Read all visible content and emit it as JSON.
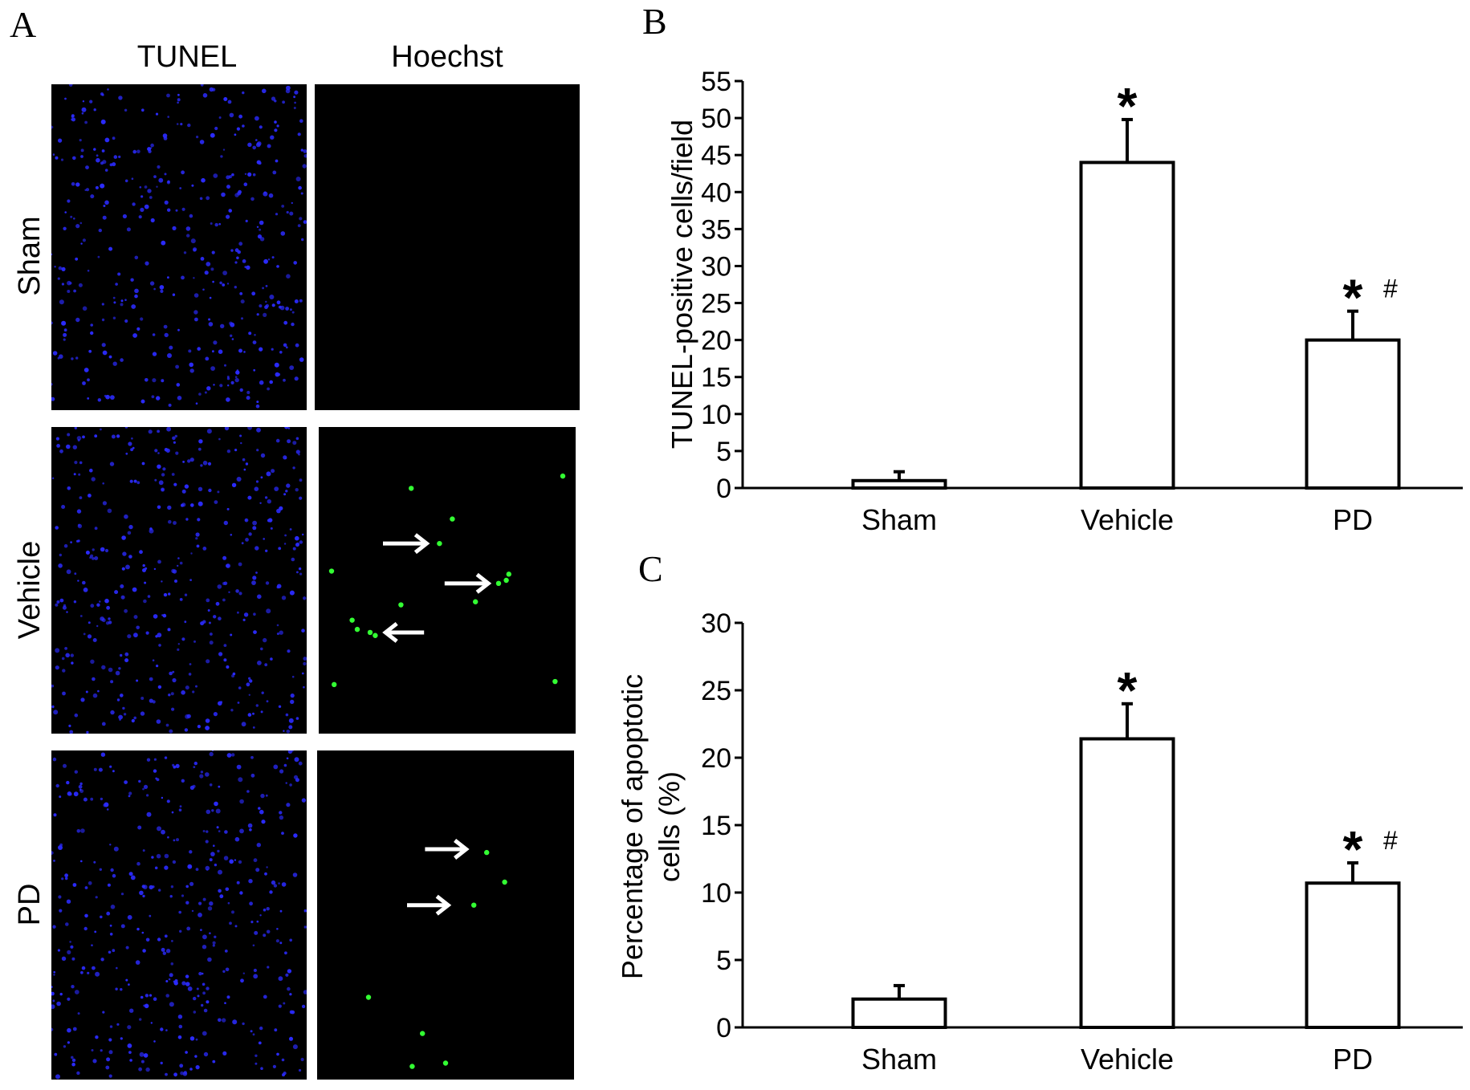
{
  "panel_a": {
    "letter": "A",
    "columns": [
      "TUNEL",
      "Hoechst"
    ],
    "rows": [
      "Sham",
      "Vehicle",
      "PD"
    ],
    "colors": {
      "nuclei": "#2b2bff",
      "apoptotic": "#33ff33",
      "arrow": "#ffffff",
      "background": "#000000"
    }
  },
  "chart_data": [
    {
      "panel": "B",
      "type": "bar",
      "categories": [
        "Sham",
        "Vehicle",
        "PD"
      ],
      "values": [
        1,
        44,
        20
      ],
      "errors": [
        1.2,
        5.8,
        3.9
      ],
      "annotations": [
        "",
        "*",
        "* #"
      ],
      "xlabel": "",
      "ylabel": "TUNEL-positive cells/field",
      "ylim": [
        0,
        55
      ],
      "yticks": [
        0,
        5,
        10,
        15,
        20,
        25,
        30,
        35,
        40,
        45,
        50,
        55
      ],
      "grid": false
    },
    {
      "panel": "C",
      "type": "bar",
      "categories": [
        "Sham",
        "Vehicle",
        "PD"
      ],
      "values": [
        2.1,
        21.4,
        10.7
      ],
      "errors": [
        1.0,
        2.6,
        1.5
      ],
      "annotations": [
        "",
        "*",
        "* #"
      ],
      "xlabel": "",
      "ylabel_lines": [
        "Percentage of apoptotic",
        "cells (%)"
      ],
      "ylim": [
        0,
        30
      ],
      "yticks": [
        0,
        5,
        10,
        15,
        20,
        25,
        30
      ],
      "grid": false
    }
  ]
}
